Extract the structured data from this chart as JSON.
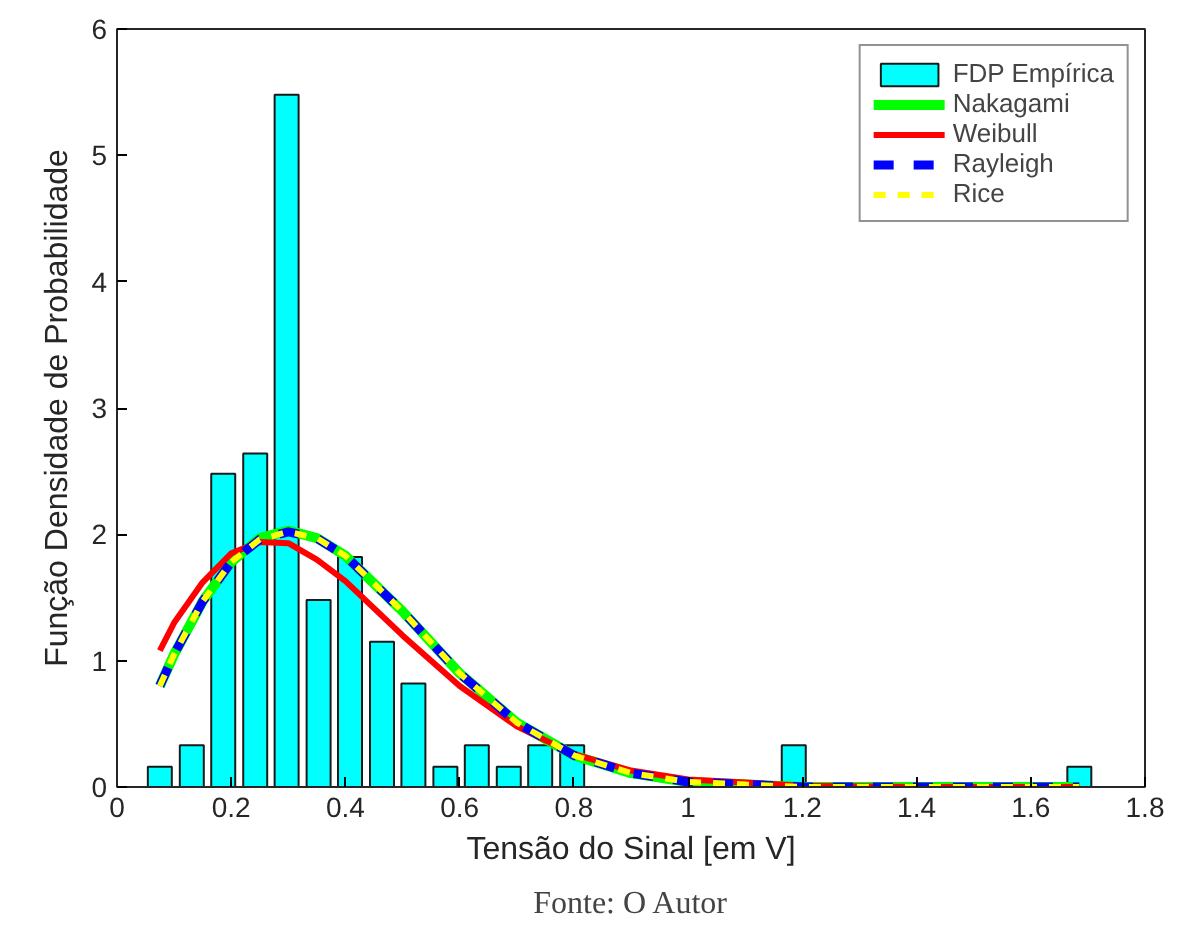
{
  "chart_data": {
    "type": "bar",
    "xlabel": "Tensão do Sinal [em V]",
    "ylabel": "Função Densidade de Probabilidade",
    "annotations": [
      "Fonte: O Autor"
    ],
    "xlim": [
      0,
      1.8
    ],
    "xticks": [
      0,
      0.2,
      0.4,
      0.6,
      0.8,
      1,
      1.2,
      1.4,
      1.6,
      1.8
    ],
    "ylim": [
      0,
      6
    ],
    "yticks": [
      0,
      1,
      2,
      3,
      4,
      5,
      6
    ],
    "grid": false,
    "legend": "top right",
    "series": [
      {
        "name": "FDP Empírica",
        "color": "#00ffff",
        "x": [
          0.075,
          0.131,
          0.186,
          0.242,
          0.297,
          0.353,
          0.408,
          0.464,
          0.519,
          0.575,
          0.63,
          0.686,
          0.741,
          0.797,
          1.185,
          1.685
        ],
        "values": [
          0.16,
          0.33,
          2.48,
          2.64,
          5.48,
          1.48,
          1.82,
          1.15,
          0.82,
          0.16,
          0.33,
          0.16,
          0.33,
          0.33,
          0.33,
          0.16
        ]
      },
      {
        "name": "Nakagami",
        "type": "line",
        "color": "#00ff00",
        "line_style": "solid",
        "x": [
          0.075,
          0.1,
          0.15,
          0.2,
          0.25,
          0.3,
          0.35,
          0.4,
          0.5,
          0.6,
          0.7,
          0.8,
          0.9,
          1.0,
          1.2,
          1.4,
          1.685
        ],
        "values": [
          0.8,
          1.05,
          1.47,
          1.78,
          1.97,
          2.03,
          1.97,
          1.83,
          1.39,
          0.9,
          0.51,
          0.25,
          0.11,
          0.04,
          0.0,
          0.0,
          0.0
        ]
      },
      {
        "name": "Weibull",
        "type": "line",
        "color": "#ff0000",
        "line_style": "solid",
        "x": [
          0.075,
          0.1,
          0.15,
          0.2,
          0.25,
          0.3,
          0.35,
          0.4,
          0.5,
          0.6,
          0.7,
          0.8,
          0.9,
          1.0,
          1.2,
          1.4,
          1.685
        ],
        "values": [
          1.08,
          1.3,
          1.62,
          1.85,
          1.94,
          1.93,
          1.8,
          1.63,
          1.2,
          0.8,
          0.48,
          0.26,
          0.13,
          0.06,
          0.01,
          0.0,
          0.0
        ]
      },
      {
        "name": "Rayleigh",
        "type": "line",
        "color": "#0000ff",
        "line_style": "dashed",
        "x": [
          0.075,
          0.1,
          0.15,
          0.2,
          0.25,
          0.3,
          0.35,
          0.4,
          0.5,
          0.6,
          0.7,
          0.8,
          0.9,
          1.0,
          1.2,
          1.4,
          1.685
        ],
        "values": [
          0.8,
          1.05,
          1.47,
          1.78,
          1.96,
          2.02,
          1.97,
          1.83,
          1.39,
          0.9,
          0.51,
          0.25,
          0.11,
          0.04,
          0.0,
          0.0,
          0.0
        ]
      },
      {
        "name": "Rice",
        "type": "line",
        "color": "#ffff00",
        "line_style": "dashed",
        "x": [
          0.075,
          0.1,
          0.15,
          0.2,
          0.25,
          0.3,
          0.35,
          0.4,
          0.5,
          0.6,
          0.7,
          0.8,
          0.9,
          1.0,
          1.2,
          1.4,
          1.685
        ],
        "values": [
          0.8,
          1.05,
          1.47,
          1.78,
          1.96,
          2.02,
          1.97,
          1.83,
          1.39,
          0.9,
          0.51,
          0.25,
          0.11,
          0.04,
          0.0,
          0.0,
          0.0
        ]
      }
    ]
  }
}
